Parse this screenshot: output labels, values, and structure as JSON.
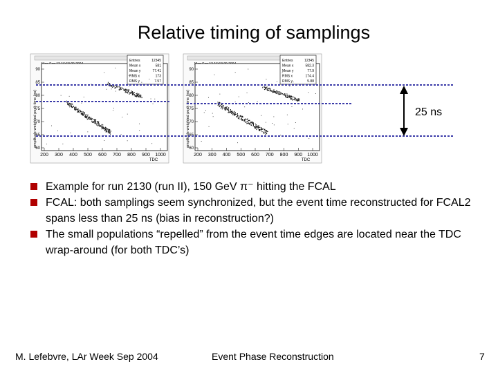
{
  "slide": {
    "title": "Relative timing of samplings",
    "annotation": "25 ns",
    "bullets": [
      "Example for run 2130 (run II), 150 GeV π⁻ hitting the FCAL",
      "FCAL: both samplings seem synchronized, but the event time reconstructed for FCAL2 spans less than 25 ns (bias in reconstruction?)",
      "The small populations “repelled” from the event time edges are located near the TDC wrap-around (for both TDC’s)"
    ],
    "footer_left": "M. Lefebvre, LAr Week Sep 2004",
    "footer_center": "Event Phase Reconstruction",
    "page_number": "7"
  },
  "plots": [
    {
      "ylabel": "amplitude-weighted peak time (ns)",
      "xlabel": "TDC",
      "date": "Mon Sep 13 16:58:29 2004",
      "xticks": [
        "200",
        "300",
        "400",
        "500",
        "600",
        "700",
        "800",
        "900",
        "1000"
      ],
      "yticks": [
        "90",
        "85",
        "80",
        "75",
        "70",
        "65",
        "60"
      ],
      "stats": [
        [
          "Entries",
          "12345"
        ],
        [
          "Mean x",
          "581"
        ],
        [
          "Mean y",
          "77.41"
        ],
        [
          "RMS x",
          "173"
        ],
        [
          "RMS y",
          "7.57"
        ]
      ]
    },
    {
      "ylabel": "amplitude-weighted peak time (ns)",
      "xlabel": "TDC",
      "date": "Mon Sep 13 16:58:29 2004",
      "xticks": [
        "200",
        "300",
        "400",
        "500",
        "600",
        "700",
        "800",
        "900",
        "1000"
      ],
      "yticks": [
        "90",
        "85",
        "80",
        "75",
        "70",
        "65",
        "60"
      ],
      "stats": [
        [
          "Entries",
          "12345"
        ],
        [
          "Mean x",
          "582.3"
        ],
        [
          "Mean y",
          "77.9"
        ],
        [
          "RMS x",
          "174.4"
        ],
        [
          "RMS y",
          "5.88"
        ]
      ]
    }
  ],
  "colors": {
    "bullet": "#b00000",
    "guide_line": "#3a3aa8"
  }
}
